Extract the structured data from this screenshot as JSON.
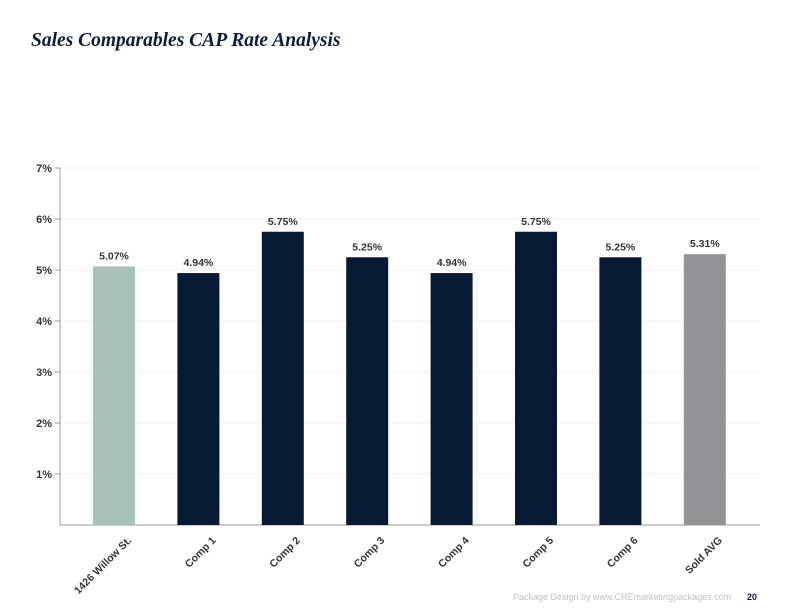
{
  "page": {
    "title": "Sales Comparables CAP Rate Analysis",
    "footer_credit": "Package Design by www.CREmarketingpackages.com",
    "page_number": "20"
  },
  "colors": {
    "title": "#0b1d3a",
    "subject": "#a7c2b8",
    "comp": "#071a33",
    "average": "#929396",
    "axis": "#999999",
    "label": "#333333"
  },
  "chart_data": {
    "type": "bar",
    "title": "Sales Comparables CAP Rate Analysis",
    "xlabel": "",
    "ylabel": "",
    "ylim": [
      0,
      7
    ],
    "yticks": [
      1,
      2,
      3,
      4,
      5,
      6,
      7
    ],
    "ytick_labels": [
      "1%",
      "2%",
      "3%",
      "4%",
      "5%",
      "6%",
      "7%"
    ],
    "grid": true,
    "categories": [
      "1426 Willow St.",
      "Comp 1",
      "Comp 2",
      "Comp 3",
      "Comp 4",
      "Comp 5",
      "Comp 6",
      "Sold AVG"
    ],
    "values": [
      5.07,
      4.94,
      5.75,
      5.25,
      4.94,
      5.75,
      5.25,
      5.31
    ],
    "value_labels": [
      "5.07%",
      "4.94%",
      "5.75%",
      "5.25%",
      "4.94%",
      "5.75%",
      "5.25%",
      "5.31%"
    ],
    "bar_colors": [
      "#a7c2b8",
      "#071a33",
      "#071a33",
      "#071a33",
      "#071a33",
      "#071a33",
      "#071a33",
      "#929396"
    ]
  }
}
